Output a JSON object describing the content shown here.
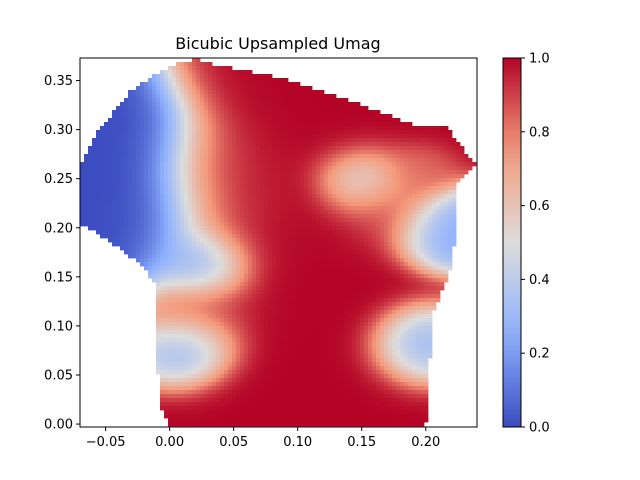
{
  "chart_data": {
    "type": "heatmap",
    "title": "Bicubic Upsampled Umag",
    "xlabel": "",
    "ylabel": "",
    "xlim": [
      -0.07,
      0.24
    ],
    "ylim": [
      -0.003,
      0.373
    ],
    "x_ticks": [
      -0.05,
      0.0,
      0.05,
      0.1,
      0.15,
      0.2
    ],
    "x_tick_labels": [
      "−0.05",
      "0.00",
      "0.05",
      "0.10",
      "0.15",
      "0.20"
    ],
    "y_ticks": [
      0.0,
      0.05,
      0.1,
      0.15,
      0.2,
      0.25,
      0.3,
      0.35
    ],
    "y_tick_labels": [
      "0.00",
      "0.05",
      "0.10",
      "0.15",
      "0.20",
      "0.25",
      "0.30",
      "0.35"
    ],
    "colormap": "coolwarm",
    "colors": {
      "low": "#3b4cc0",
      "mid": "#dddddd",
      "high": "#b40426"
    },
    "colorbar": {
      "range": [
        0.0,
        1.0
      ],
      "ticks": [
        0.0,
        0.2,
        0.4,
        0.6,
        0.8,
        1.0
      ],
      "tick_labels": [
        "0.0",
        "0.2",
        "0.4",
        "0.6",
        "0.8",
        "1.0"
      ]
    },
    "grid": false,
    "domain_outline": [
      [
        0.0,
        0.0
      ],
      [
        0.02,
        0.0
      ],
      [
        0.05,
        0.0
      ],
      [
        0.1,
        0.0
      ],
      [
        0.15,
        0.0
      ],
      [
        0.2,
        0.0
      ],
      [
        0.203,
        0.06
      ],
      [
        0.205,
        0.11
      ],
      [
        0.22,
        0.16
      ],
      [
        0.225,
        0.21
      ],
      [
        0.222,
        0.24
      ],
      [
        0.238,
        0.265
      ],
      [
        0.215,
        0.305
      ],
      [
        0.19,
        0.305
      ],
      [
        0.13,
        0.335
      ],
      [
        0.08,
        0.355
      ],
      [
        0.04,
        0.365
      ],
      [
        0.02,
        0.372
      ],
      [
        0.0,
        0.365
      ],
      [
        -0.03,
        0.34
      ],
      [
        -0.055,
        0.3
      ],
      [
        -0.07,
        0.265
      ],
      [
        -0.07,
        0.205
      ],
      [
        -0.04,
        0.18
      ],
      [
        -0.02,
        0.16
      ],
      [
        -0.01,
        0.14
      ],
      [
        -0.01,
        0.08
      ],
      [
        -0.008,
        0.02
      ]
    ],
    "field_peaks": [
      {
        "x": 0.11,
        "y": 0.03,
        "value": 1.0,
        "spread": 0.05
      },
      {
        "x": 0.1,
        "y": 0.12,
        "value": 1.0,
        "spread": 0.05
      },
      {
        "x": 0.08,
        "y": 0.2,
        "value": 1.0,
        "spread": 0.04
      },
      {
        "x": 0.1,
        "y": 0.32,
        "value": 1.0,
        "spread": 0.04
      },
      {
        "x": 0.15,
        "y": 0.31,
        "value": 1.0,
        "spread": 0.04
      },
      {
        "x": 0.05,
        "y": 0.25,
        "value": 1.0,
        "spread": 0.03
      },
      {
        "x": 0.17,
        "y": 0.22,
        "value": 0.9,
        "spread": 0.025
      },
      {
        "x": 0.03,
        "y": 0.11,
        "value": 0.9,
        "spread": 0.025
      },
      {
        "x": 0.19,
        "y": 0.26,
        "value": 0.8,
        "spread": 0.015
      },
      {
        "x": -0.04,
        "y": 0.23,
        "value": 0.0,
        "spread": 0.05
      },
      {
        "x": 0.02,
        "y": 0.08,
        "value": 0.1,
        "spread": 0.02
      },
      {
        "x": 0.15,
        "y": 0.25,
        "value": 0.3,
        "spread": 0.02
      },
      {
        "x": 0.21,
        "y": 0.2,
        "value": 0.2,
        "spread": 0.02
      },
      {
        "x": 0.19,
        "y": 0.08,
        "value": 0.2,
        "spread": 0.02
      },
      {
        "x": 0.03,
        "y": 0.16,
        "value": 0.1,
        "spread": 0.02
      }
    ]
  }
}
